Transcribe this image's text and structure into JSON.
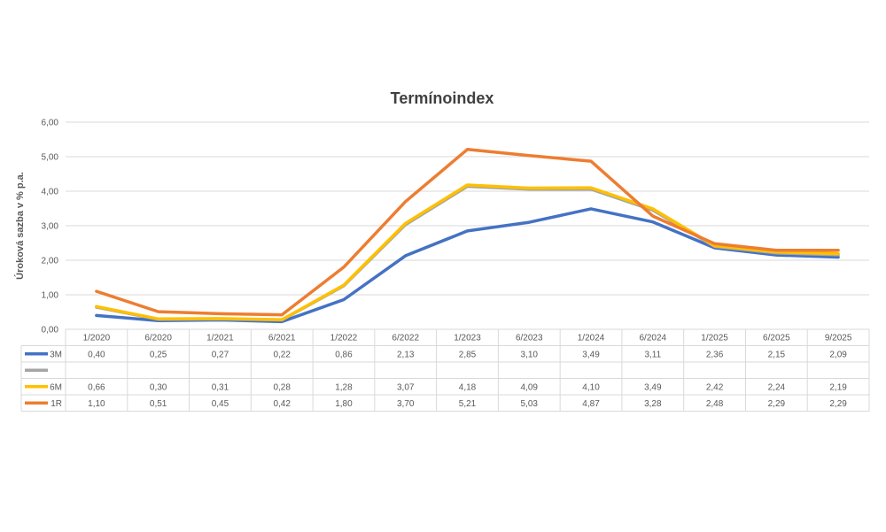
{
  "chart_data": {
    "type": "line",
    "title": "Termínoindex",
    "ylabel": "Úroková sazba v % p.a.",
    "xlabel": "",
    "ylim": [
      0,
      6
    ],
    "yticks": [
      "0,00",
      "1,00",
      "2,00",
      "3,00",
      "4,00",
      "5,00",
      "6,00"
    ],
    "grid": true,
    "legend": "data-table",
    "categories": [
      "1/2020",
      "6/2020",
      "1/2021",
      "6/2021",
      "1/2022",
      "6/2022",
      "1/2023",
      "6/2023",
      "1/2024",
      "6/2024",
      "1/2025",
      "6/2025",
      "9/2025"
    ],
    "series": [
      {
        "name": "3M",
        "color": "#4472C4",
        "values": [
          0.4,
          0.25,
          0.27,
          0.22,
          0.86,
          2.13,
          2.85,
          3.1,
          3.49,
          3.11,
          2.36,
          2.15,
          2.09
        ],
        "labels": [
          "0,40",
          "0,25",
          "0,27",
          "0,22",
          "0,86",
          "2,13",
          "2,85",
          "3,10",
          "3,49",
          "3,11",
          "2,36",
          "2,15",
          "2,09"
        ]
      },
      {
        "name": "",
        "color": "#A5A5A5",
        "values": [
          0.64,
          0.29,
          0.3,
          0.27,
          1.26,
          3.03,
          4.14,
          4.06,
          4.06,
          3.45,
          2.4,
          2.21,
          2.16
        ],
        "labels": [
          "",
          "",
          "",
          "",
          "",
          "",
          "",
          "",
          "",
          "",
          "",
          "",
          ""
        ]
      },
      {
        "name": "6M",
        "color": "#FFC000",
        "values": [
          0.66,
          0.3,
          0.31,
          0.28,
          1.28,
          3.07,
          4.18,
          4.09,
          4.1,
          3.49,
          2.42,
          2.24,
          2.19
        ],
        "labels": [
          "0,66",
          "0,30",
          "0,31",
          "0,28",
          "1,28",
          "3,07",
          "4,18",
          "4,09",
          "4,10",
          "3,49",
          "2,42",
          "2,24",
          "2,19"
        ]
      },
      {
        "name": "1R",
        "color": "#ED7D31",
        "values": [
          1.1,
          0.51,
          0.45,
          0.42,
          1.8,
          3.7,
          5.21,
          5.03,
          4.87,
          3.28,
          2.48,
          2.29,
          2.29
        ],
        "labels": [
          "1,10",
          "0,51",
          "0,45",
          "0,42",
          "1,80",
          "3,70",
          "5,21",
          "5,03",
          "4,87",
          "3,28",
          "2,48",
          "2,29",
          "2,29"
        ]
      }
    ]
  }
}
